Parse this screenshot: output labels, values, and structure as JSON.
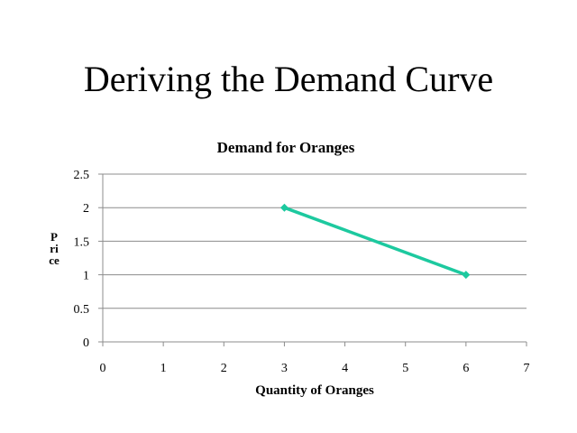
{
  "slide": {
    "title": "Deriving the Demand Curve"
  },
  "chart_data": {
    "type": "line",
    "title": "Demand for Oranges",
    "xlabel": "Quantity of Oranges",
    "ylabel": "Price",
    "xlim": [
      0,
      7
    ],
    "ylim": [
      0,
      2.5
    ],
    "xticks": [
      "0",
      "1",
      "2",
      "3",
      "4",
      "5",
      "6",
      "7"
    ],
    "yticks": [
      "0",
      "0.5",
      "1",
      "1.5",
      "2",
      "2.5"
    ],
    "grid": "horizontal",
    "legend": "none",
    "series": [
      {
        "x": [
          3,
          6
        ],
        "y": [
          2,
          1
        ],
        "color": "#1dc99f",
        "marker": "diamond"
      }
    ]
  }
}
